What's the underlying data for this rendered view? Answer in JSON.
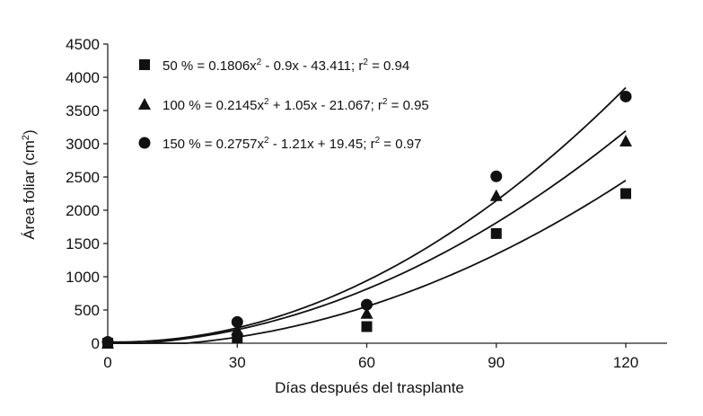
{
  "chart_data": {
    "type": "scatter",
    "x": [
      0,
      30,
      60,
      90,
      120
    ],
    "xlabel": "Días después del trasplante",
    "ylabel": "Área foliar (cm²)",
    "ylabel_parts": {
      "base": "Área foliar (cm",
      "sup": "2",
      "end": ")"
    },
    "xlim": [
      0,
      130
    ],
    "ylim": [
      0,
      4500
    ],
    "xticks": [
      0,
      30,
      60,
      90,
      120
    ],
    "yticks": [
      0,
      500,
      1000,
      1500,
      2000,
      2500,
      3000,
      3500,
      4000,
      4500
    ],
    "grid": false,
    "legend_position": "top-left",
    "series": [
      {
        "marker": "square",
        "values": [
          0,
          80,
          250,
          1650,
          2250
        ],
        "fit": {
          "a": 0.1806,
          "b": -0.9,
          "c": -43.411
        },
        "legend": {
          "pre": "50 % = 0.1806x",
          "sup": "2",
          "mid": " - 0.9x - 43.411; r",
          "sup2": "2",
          "post": " = 0.94"
        }
      },
      {
        "marker": "triangle",
        "values": [
          0,
          200,
          450,
          2220,
          3040
        ],
        "fit": {
          "a": 0.2145,
          "b": 1.05,
          "c": -21.067
        },
        "legend": {
          "pre": "100 % = 0.2145x",
          "sup": "2",
          "mid": " + 1.05x - 21.067; r",
          "sup2": "2",
          "post": " = 0.95"
        }
      },
      {
        "marker": "circle",
        "values": [
          20,
          320,
          580,
          2510,
          3710
        ],
        "fit": {
          "a": 0.2757,
          "b": -1.21,
          "c": 19.45
        },
        "legend": {
          "pre": "150 % = 0.2757x",
          "sup": "2",
          "mid": " - 1.21x + 19.45; r",
          "sup2": "2",
          "post": " = 0.97"
        }
      }
    ]
  }
}
